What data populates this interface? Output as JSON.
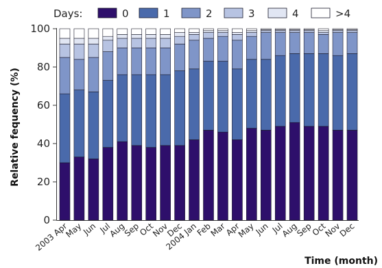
{
  "chart_data": {
    "type": "bar",
    "stacked": true,
    "title": "",
    "xlabel": "Time (month)",
    "ylabel": "Relative fequency (%)",
    "ylim": [
      0,
      100
    ],
    "yticks": [
      0,
      20,
      40,
      60,
      80,
      100
    ],
    "grid": false,
    "legend": {
      "title": "Days:",
      "position": "top",
      "entries": [
        "0",
        "1",
        "2",
        "3",
        "4",
        ">4"
      ]
    },
    "categories": [
      "2003 Apr",
      "May",
      "Jun",
      "Jul",
      "Aug",
      "Sep",
      "Oct",
      "Nov",
      "Dec",
      "2004 Jan",
      "Feb",
      "Mar",
      "Apr",
      "May",
      "Jun",
      "Jul",
      "Aug",
      "Sep",
      "Oct",
      "Nov",
      "Dec"
    ],
    "series": [
      {
        "name": "0",
        "color": "#2e0f6b",
        "values": [
          30,
          33,
          32,
          38,
          41,
          39,
          38,
          39,
          39,
          42,
          47,
          46,
          42,
          48,
          47,
          49,
          51,
          49,
          49,
          47,
          47
        ]
      },
      {
        "name": "1",
        "color": "#4a6aab",
        "values": [
          36,
          35,
          35,
          35,
          35,
          37,
          38,
          37,
          39,
          37,
          36,
          37,
          37,
          36,
          37,
          37,
          36,
          38,
          38,
          39,
          40
        ]
      },
      {
        "name": "2",
        "color": "#7f95c8",
        "values": [
          19,
          16,
          18,
          15,
          14,
          14,
          14,
          14,
          14,
          15,
          12,
          13,
          15,
          12,
          14,
          12,
          11,
          11,
          10,
          12,
          11
        ]
      },
      {
        "name": "3",
        "color": "#b7c3e2",
        "values": [
          7,
          8,
          7,
          6,
          5,
          5,
          5,
          5,
          4,
          3,
          3,
          2,
          3,
          2,
          1,
          1,
          1,
          1,
          1,
          1,
          1
        ]
      },
      {
        "name": "4",
        "color": "#e1e6f3",
        "values": [
          3,
          3,
          3,
          2,
          2,
          2,
          2,
          2,
          2,
          1,
          1,
          1,
          1,
          1,
          0.5,
          0.5,
          0.5,
          0.5,
          1,
          0.5,
          0.5
        ]
      },
      {
        "name": ">4",
        "color": "#ffffff",
        "values": [
          5,
          5,
          5,
          4,
          3,
          3,
          3,
          3,
          2,
          2,
          1,
          1,
          2,
          1,
          0.5,
          0.5,
          0.5,
          0.5,
          1,
          0.5,
          0.5
        ]
      }
    ]
  }
}
